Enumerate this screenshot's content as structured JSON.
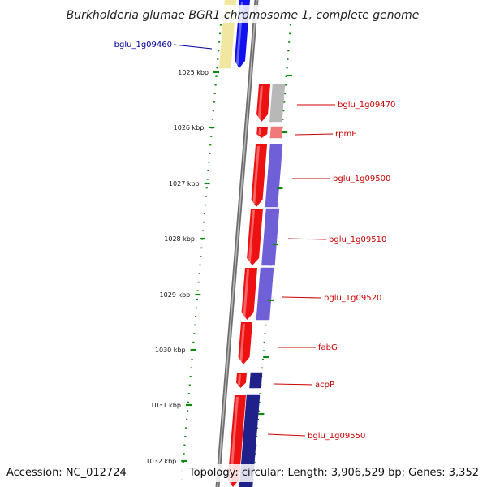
{
  "title": "Burkholderia glumae BGR1 chromosome 1, complete genome",
  "footer": {
    "accession": "Accession: NC_012724",
    "topology": "Topology: circular; Length: 3,906,529 bp; Genes: 3,352"
  },
  "colors": {
    "ruler_tick": "#118811",
    "backbone": "#6e6e6e",
    "forward_gene": "#ee1111",
    "reverse_gene": "#1111ee",
    "forward_label": "#cc0000",
    "reverse_label": "#000099",
    "product_purple": "#7060d8",
    "product_gray": "#b8b8b8",
    "product_yellow": "#f2e7a0",
    "product_navy": "#20208a",
    "product_pink": "#f07a7a"
  },
  "ruler": {
    "labels": [
      "1025 kbp",
      "1026 kbp",
      "1027 kbp",
      "1028 kbp",
      "1029 kbp",
      "1030 kbp",
      "1031 kbp",
      "1032 kbp"
    ]
  },
  "genes": [
    {
      "name": "bglu_1g09460",
      "strand": "reverse"
    },
    {
      "name": "bglu_1g09470",
      "strand": "forward"
    },
    {
      "name": "rpmF",
      "strand": "forward"
    },
    {
      "name": "bglu_1g09500",
      "strand": "forward"
    },
    {
      "name": "bglu_1g09510",
      "strand": "forward"
    },
    {
      "name": "bglu_1g09520",
      "strand": "forward"
    },
    {
      "name": "fabG",
      "strand": "forward"
    },
    {
      "name": "acpP",
      "strand": "forward"
    },
    {
      "name": "bglu_1g09550",
      "strand": "forward"
    }
  ]
}
